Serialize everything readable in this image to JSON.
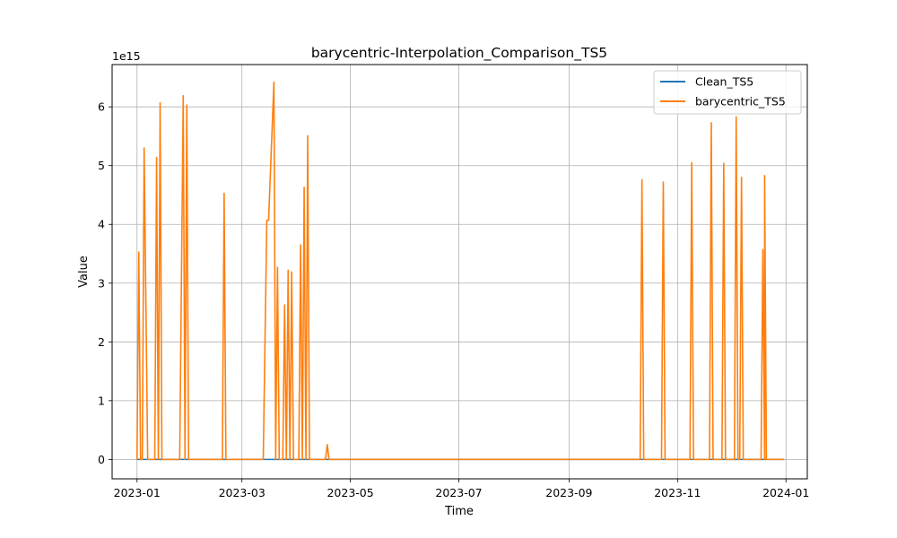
{
  "chart_data": {
    "type": "line",
    "title": "barycentric-Interpolation_Comparison_TS5",
    "xlabel": "Time",
    "ylabel": "Value",
    "y_offset_label": "1e15",
    "y_scale_factor": 1000000000000000.0,
    "xlim": [
      "2022-12-18",
      "2024-01-13"
    ],
    "ylim": [
      -0.33,
      6.72
    ],
    "grid": true,
    "legend_placement": "top-right",
    "x_ticks": [
      "2023-01-01",
      "2023-03-01",
      "2023-05-01",
      "2023-07-01",
      "2023-09-01",
      "2023-11-01",
      "2024-01-01"
    ],
    "x_tick_labels": [
      "2023-01",
      "2023-03",
      "2023-05",
      "2023-07",
      "2023-09",
      "2023-11",
      "2024-01"
    ],
    "y_ticks": [
      0,
      1,
      2,
      3,
      4,
      5,
      6
    ],
    "y_tick_labels": [
      "0",
      "1",
      "2",
      "3",
      "4",
      "5",
      "6"
    ],
    "series": [
      {
        "name": "Clean_TS5",
        "color": "#1f77b4",
        "points": [
          [
            "2023-01-01",
            0
          ],
          [
            "2023-12-31",
            0
          ]
        ]
      },
      {
        "name": "barycentric_TS5",
        "color": "#ff7f0e",
        "points": [
          [
            "2023-01-01",
            0
          ],
          [
            "2023-01-02",
            3.53
          ],
          [
            "2023-01-03",
            0
          ],
          [
            "2023-01-04",
            0
          ],
          [
            "2023-01-05",
            5.3
          ],
          [
            "2023-01-07",
            0
          ],
          [
            "2023-01-11",
            0
          ],
          [
            "2023-01-12",
            5.14
          ],
          [
            "2023-01-13",
            0
          ],
          [
            "2023-01-14",
            6.07
          ],
          [
            "2023-01-15",
            0
          ],
          [
            "2023-01-25",
            0
          ],
          [
            "2023-01-27",
            6.19
          ],
          [
            "2023-01-28",
            0
          ],
          [
            "2023-01-29",
            6.03
          ],
          [
            "2023-01-30",
            0
          ],
          [
            "2023-02-18",
            0
          ],
          [
            "2023-02-19",
            4.53
          ],
          [
            "2023-02-20",
            0
          ],
          [
            "2023-03-13",
            0
          ],
          [
            "2023-03-15",
            4.07
          ],
          [
            "2023-03-16",
            4.07
          ],
          [
            "2023-03-19",
            6.42
          ],
          [
            "2023-03-20",
            0
          ],
          [
            "2023-03-21",
            3.27
          ],
          [
            "2023-03-22",
            0
          ],
          [
            "2023-03-24",
            0
          ],
          [
            "2023-03-25",
            2.63
          ],
          [
            "2023-03-26",
            0
          ],
          [
            "2023-03-27",
            3.22
          ],
          [
            "2023-03-28",
            0
          ],
          [
            "2023-03-29",
            3.19
          ],
          [
            "2023-03-30",
            0
          ],
          [
            "2023-04-02",
            0
          ],
          [
            "2023-04-03",
            3.65
          ],
          [
            "2023-04-04",
            0
          ],
          [
            "2023-04-05",
            4.63
          ],
          [
            "2023-04-06",
            0
          ],
          [
            "2023-04-07",
            5.51
          ],
          [
            "2023-04-08",
            0
          ],
          [
            "2023-04-17",
            0
          ],
          [
            "2023-04-18",
            0.25
          ],
          [
            "2023-04-19",
            0
          ],
          [
            "2023-10-11",
            0
          ],
          [
            "2023-10-12",
            4.76
          ],
          [
            "2023-10-13",
            0
          ],
          [
            "2023-10-23",
            0
          ],
          [
            "2023-10-24",
            4.72
          ],
          [
            "2023-10-25",
            0
          ],
          [
            "2023-11-08",
            0
          ],
          [
            "2023-11-09",
            5.05
          ],
          [
            "2023-11-10",
            0
          ],
          [
            "2023-11-19",
            0
          ],
          [
            "2023-11-20",
            5.73
          ],
          [
            "2023-11-21",
            0
          ],
          [
            "2023-11-26",
            0
          ],
          [
            "2023-11-27",
            5.04
          ],
          [
            "2023-11-28",
            0
          ],
          [
            "2023-12-03",
            0
          ],
          [
            "2023-12-04",
            5.83
          ],
          [
            "2023-12-05",
            0
          ],
          [
            "2023-12-06",
            0
          ],
          [
            "2023-12-07",
            4.8
          ],
          [
            "2023-12-08",
            0
          ],
          [
            "2023-12-18",
            0
          ],
          [
            "2023-12-19",
            3.57
          ],
          [
            "2023-12-20",
            0
          ],
          [
            "2023-12-20",
            4.83
          ],
          [
            "2023-12-21",
            0
          ],
          [
            "2023-12-31",
            0
          ]
        ]
      }
    ]
  }
}
